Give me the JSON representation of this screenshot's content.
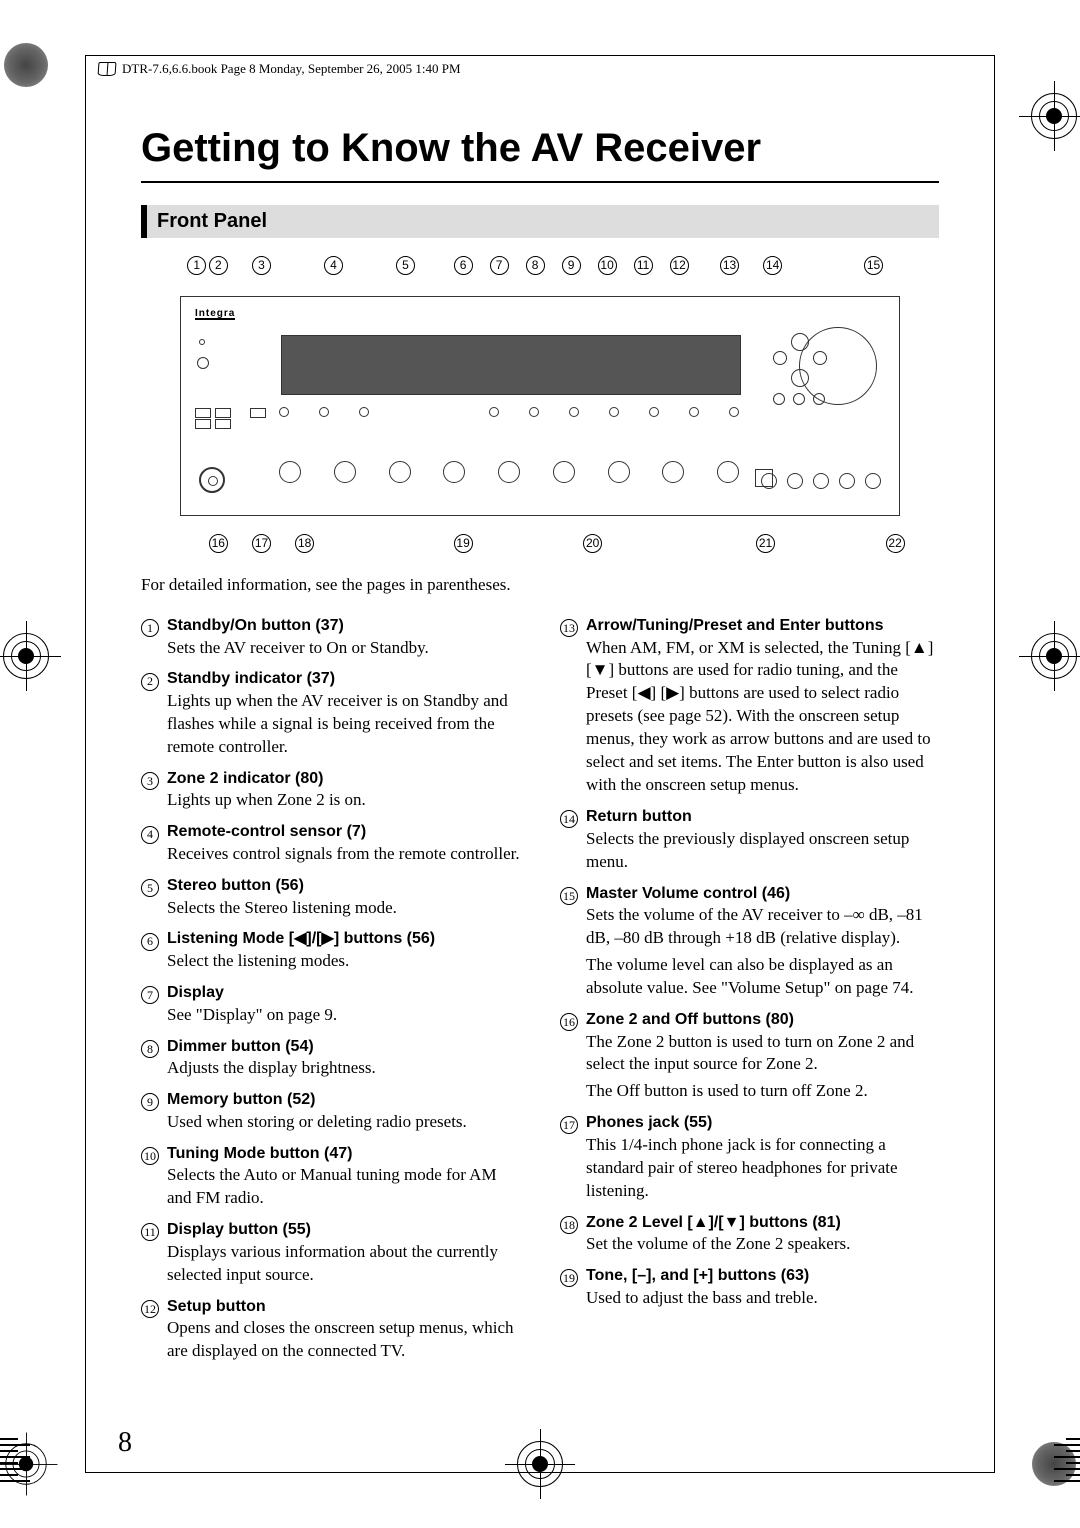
{
  "header_text": "DTR-7.6,6.6.book  Page 8  Monday, September 26, 2005  1:40 PM",
  "page_title": "Getting to Know the AV Receiver",
  "section_title": "Front Panel",
  "page_number": "8",
  "lead_text": "For detailed information, see the pages in parentheses.",
  "device_logo": "Integra",
  "top_callouts": [
    "1",
    "2",
    "3",
    "4",
    "5",
    "6",
    "7",
    "8",
    "9",
    "10",
    "11",
    "12",
    "13",
    "14",
    "15"
  ],
  "top_positions": [
    1,
    4,
    10,
    20,
    30,
    38,
    43,
    48,
    53,
    58,
    63,
    68,
    75,
    81,
    95
  ],
  "bottom_callouts": [
    "16",
    "17",
    "18",
    "19",
    "20",
    "21",
    "22"
  ],
  "bottom_positions": [
    4,
    10,
    16,
    38,
    56,
    80,
    98
  ],
  "left_items": [
    {
      "n": "1",
      "title": "Standby/On button (37)",
      "desc": [
        "Sets the AV receiver to On or Standby."
      ]
    },
    {
      "n": "2",
      "title": "Standby indicator (37)",
      "desc": [
        "Lights up when the AV receiver is on Standby and flashes while a signal is being received from the remote controller."
      ]
    },
    {
      "n": "3",
      "title": "Zone 2 indicator (80)",
      "desc": [
        "Lights up when Zone 2 is on."
      ]
    },
    {
      "n": "4",
      "title": "Remote-control sensor (7)",
      "desc": [
        "Receives control signals from the remote controller."
      ]
    },
    {
      "n": "5",
      "title": "Stereo button (56)",
      "desc": [
        "Selects the Stereo listening mode."
      ]
    },
    {
      "n": "6",
      "title": "Listening Mode [◀]/[▶] buttons (56)",
      "desc": [
        "Select the listening modes."
      ]
    },
    {
      "n": "7",
      "title": "Display",
      "desc": [
        "See \"Display\" on page 9."
      ]
    },
    {
      "n": "8",
      "title": "Dimmer button (54)",
      "desc": [
        "Adjusts the display brightness."
      ]
    },
    {
      "n": "9",
      "title": "Memory button (52)",
      "desc": [
        "Used when storing or deleting radio presets."
      ]
    },
    {
      "n": "10",
      "title": "Tuning Mode button (47)",
      "desc": [
        "Selects the Auto or Manual tuning mode for AM and FM radio."
      ]
    },
    {
      "n": "11",
      "title": "Display button (55)",
      "desc": [
        "Displays various information about the currently selected input source."
      ]
    },
    {
      "n": "12",
      "title": "Setup button",
      "desc": [
        "Opens and closes the onscreen setup menus, which are displayed on the connected TV."
      ]
    }
  ],
  "right_items": [
    {
      "n": "13",
      "title": "Arrow/Tuning/Preset and Enter buttons",
      "desc": [
        "When AM, FM, or XM is selected, the Tuning [▲] [▼] buttons are used for radio tuning, and the Preset [◀] [▶] buttons are used to select radio presets (see page 52). With the onscreen setup menus, they work as arrow buttons and are used to select and set items. The Enter button is also used with the onscreen setup menus."
      ]
    },
    {
      "n": "14",
      "title": "Return button",
      "desc": [
        "Selects the previously displayed onscreen setup menu."
      ]
    },
    {
      "n": "15",
      "title": "Master Volume control (46)",
      "desc": [
        "Sets the volume of the AV receiver to –∞ dB, –81 dB, –80 dB through +18 dB (relative display).",
        "The volume level can also be displayed as an absolute value. See \"Volume Setup\" on page 74."
      ]
    },
    {
      "n": "16",
      "title": "Zone 2 and Off buttons (80)",
      "desc": [
        "The Zone 2 button is used to turn on Zone 2 and select the input source for Zone 2.",
        "The Off button is used to turn off Zone 2."
      ]
    },
    {
      "n": "17",
      "title": "Phones jack (55)",
      "desc": [
        "This 1/4-inch phone jack is for connecting a standard pair of stereo headphones for private listening."
      ]
    },
    {
      "n": "18",
      "title": "Zone 2 Level [▲]/[▼] buttons (81)",
      "desc": [
        "Set the volume of the Zone 2 speakers."
      ]
    },
    {
      "n": "19",
      "title": "Tone, [–], and [+] buttons (63)",
      "desc": [
        "Used to adjust the bass and treble."
      ]
    }
  ]
}
